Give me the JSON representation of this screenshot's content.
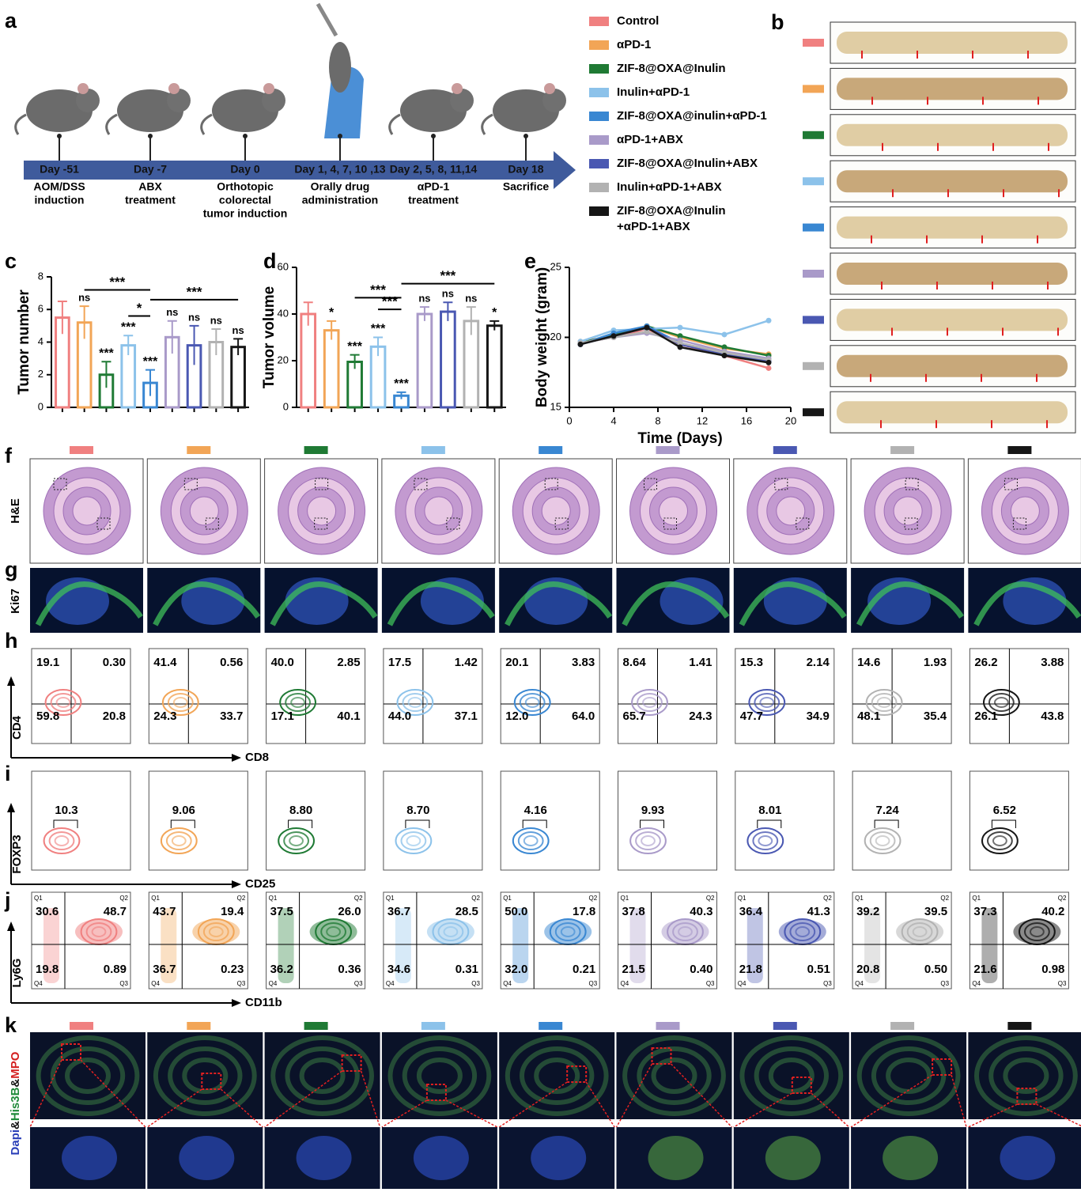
{
  "panel_labels": [
    "a",
    "b",
    "c",
    "d",
    "e",
    "f",
    "g",
    "h",
    "i",
    "j",
    "k"
  ],
  "timeline": {
    "events": [
      {
        "day": "Day -51",
        "label": [
          "AOM/DSS",
          "induction"
        ]
      },
      {
        "day": "Day -7",
        "label": [
          "ABX",
          "treatment"
        ]
      },
      {
        "day": "Day 0",
        "label": [
          "Orthotopic",
          "colorectal",
          "tumor induction"
        ]
      },
      {
        "day": "Day 1, 4, 7, 10 ,13",
        "label": [
          "Orally drug",
          "administration"
        ]
      },
      {
        "day": "Day 2, 5, 8, 11,14",
        "label": [
          "αPD-1",
          "treatment"
        ]
      },
      {
        "day": "Day 18",
        "label": [
          "Sacrifice"
        ]
      }
    ]
  },
  "legend": {
    "items": [
      {
        "name": [
          "Control"
        ],
        "color": "#f08080"
      },
      {
        "name": [
          "αPD-1"
        ],
        "color": "#f2a556"
      },
      {
        "name": [
          "ZIF-8@OXA@Inulin"
        ],
        "color": "#1f7a34"
      },
      {
        "name": [
          "Inulin+αPD-1"
        ],
        "color": "#8cc2ea"
      },
      {
        "name": [
          "ZIF-8@OXA@inulin+αPD-1"
        ],
        "color": "#3987d2"
      },
      {
        "name": [
          "αPD-1+ABX"
        ],
        "color": "#a99ac9"
      },
      {
        "name": [
          "ZIF-8@OXA@Inulin+ABX"
        ],
        "color": "#4a58b2"
      },
      {
        "name": [
          "Inulin+αPD-1+ABX"
        ],
        "color": "#b2b2b2"
      },
      {
        "name": [
          "ZIF-8@OXA@Inulin",
          "+αPD-1+ABX"
        ],
        "color": "#161616"
      }
    ]
  },
  "chart_data": [
    {
      "type": "bar",
      "y_label": "Tumor number",
      "values": [
        5.5,
        5.2,
        2.0,
        3.8,
        1.5,
        4.3,
        3.8,
        4.0,
        3.7
      ],
      "errors": [
        1.0,
        1.0,
        0.8,
        0.6,
        0.8,
        1.0,
        1.2,
        0.8,
        0.5
      ],
      "ylim": [
        0,
        8
      ],
      "yticks": [
        0,
        2,
        4,
        6,
        8
      ],
      "annotations": [
        {
          "text": "ns",
          "bar": 1
        },
        {
          "text": "***",
          "bar": 2
        },
        {
          "text": "***",
          "bar": 3
        },
        {
          "text": "***",
          "bar": 4
        },
        {
          "text": "ns",
          "bar": 5
        },
        {
          "text": "ns",
          "bar": 6
        },
        {
          "text": "ns",
          "bar": 7
        },
        {
          "text": "ns",
          "bar": 8
        }
      ],
      "brackets": [
        {
          "text": "***",
          "from": 1,
          "to": 4,
          "y": 7.2
        },
        {
          "text": "*",
          "from": 3,
          "to": 4,
          "y": 5.6
        },
        {
          "text": "***",
          "from": 4,
          "to": 8,
          "y": 6.6
        }
      ]
    },
    {
      "type": "bar",
      "y_label": "Tumor volume",
      "values": [
        40,
        33,
        19.5,
        26,
        5,
        40,
        41,
        37,
        35
      ],
      "errors": [
        5,
        4,
        3,
        4,
        1.5,
        3,
        4,
        6,
        2
      ],
      "ylim": [
        0,
        60
      ],
      "yticks": [
        0,
        20,
        40,
        60
      ],
      "annotations": [
        {
          "text": "*",
          "bar": 1
        },
        {
          "text": "***",
          "bar": 2
        },
        {
          "text": "***",
          "bar": 3
        },
        {
          "text": "***",
          "bar": 4
        },
        {
          "text": "ns",
          "bar": 5
        },
        {
          "text": "ns",
          "bar": 6
        },
        {
          "text": "ns",
          "bar": 7
        },
        {
          "text": "*",
          "bar": 8
        }
      ],
      "brackets": [
        {
          "text": "***",
          "from": 2,
          "to": 4,
          "y": 47
        },
        {
          "text": "***",
          "from": 3,
          "to": 4,
          "y": 42
        },
        {
          "text": "***",
          "from": 4,
          "to": 8,
          "y": 53
        }
      ]
    },
    {
      "type": "line",
      "x_label": "Time (Days)",
      "y_label": "Body weight (gram)",
      "x": [
        1,
        4,
        7,
        10,
        14,
        18
      ],
      "xlim": [
        0,
        20
      ],
      "xticks": [
        0,
        4,
        8,
        12,
        16,
        20
      ],
      "ylim": [
        15,
        25
      ],
      "yticks": [
        15,
        20,
        25
      ],
      "series": [
        {
          "color": "#f08080",
          "values": [
            19.6,
            20.0,
            20.6,
            19.5,
            18.7,
            17.8
          ]
        },
        {
          "color": "#f2a556",
          "values": [
            19.7,
            20.1,
            20.8,
            20.0,
            19.2,
            18.8
          ]
        },
        {
          "color": "#1f7a34",
          "values": [
            19.6,
            20.2,
            20.8,
            20.1,
            19.3,
            18.7
          ]
        },
        {
          "color": "#8cc2ea",
          "values": [
            19.7,
            20.5,
            20.6,
            20.7,
            20.2,
            21.2
          ]
        },
        {
          "color": "#3987d2",
          "values": [
            19.5,
            20.3,
            20.8,
            19.6,
            18.8,
            18.3
          ]
        },
        {
          "color": "#a99ac9",
          "values": [
            19.6,
            20.0,
            20.3,
            19.8,
            19.0,
            18.5
          ]
        },
        {
          "color": "#4a58b2",
          "values": [
            19.5,
            20.1,
            20.7,
            19.5,
            18.8,
            18.3
          ]
        },
        {
          "color": "#b2b2b2",
          "values": [
            19.6,
            20.0,
            20.4,
            19.6,
            18.9,
            18.4
          ]
        },
        {
          "color": "#161616",
          "values": [
            19.5,
            20.1,
            20.7,
            19.3,
            18.7,
            18.2
          ]
        }
      ]
    }
  ],
  "histology": {
    "he_label": "H&E",
    "ki67_label": "Ki67"
  },
  "flow": {
    "cd4_cd8": {
      "y_label": "CD4",
      "x_label": "CD8",
      "values": [
        [
          "19.1",
          "0.30",
          "59.8",
          "20.8"
        ],
        [
          "41.4",
          "0.56",
          "24.3",
          "33.7"
        ],
        [
          "40.0",
          "2.85",
          "17.1",
          "40.1"
        ],
        [
          "17.5",
          "1.42",
          "44.0",
          "37.1"
        ],
        [
          "20.1",
          "3.83",
          "12.0",
          "64.0"
        ],
        [
          "8.64",
          "1.41",
          "65.7",
          "24.3"
        ],
        [
          "15.3",
          "2.14",
          "47.7",
          "34.9"
        ],
        [
          "14.6",
          "1.93",
          "48.1",
          "35.4"
        ],
        [
          "26.2",
          "3.88",
          "26.1",
          "43.8"
        ]
      ]
    },
    "foxp3": {
      "y_label": "FOXP3",
      "x_label": "CD25",
      "values": [
        "10.3",
        "9.06",
        "8.80",
        "8.70",
        "4.16",
        "9.93",
        "8.01",
        "7.24",
        "6.52"
      ]
    },
    "ly6g": {
      "y_label": "Ly6G",
      "x_label": "CD11b",
      "quadrant_names": [
        "Q1",
        "Q2",
        "Q4",
        "Q3"
      ],
      "values": [
        [
          "30.6",
          "48.7",
          "19.8",
          "0.89"
        ],
        [
          "43.7",
          "19.4",
          "36.7",
          "0.23"
        ],
        [
          "37.5",
          "26.0",
          "36.2",
          "0.36"
        ],
        [
          "36.7",
          "28.5",
          "34.6",
          "0.31"
        ],
        [
          "50.0",
          "17.8",
          "32.0",
          "0.21"
        ],
        [
          "37.8",
          "40.3",
          "21.5",
          "0.40"
        ],
        [
          "36.4",
          "41.3",
          "21.8",
          "0.51"
        ],
        [
          "39.2",
          "39.5",
          "20.8",
          "0.50"
        ],
        [
          "37.3",
          "40.2",
          "21.6",
          "0.98"
        ]
      ]
    }
  },
  "if_stain": {
    "label": [
      {
        "text": "Dapi",
        "color": "#2a3fb8"
      },
      {
        "text": "&",
        "color": "#111111"
      },
      {
        "text": "His3B",
        "color": "#1f8a3a"
      },
      {
        "text": "&",
        "color": "#111111"
      },
      {
        "text": "MPO",
        "color": "#d42020"
      }
    ]
  }
}
